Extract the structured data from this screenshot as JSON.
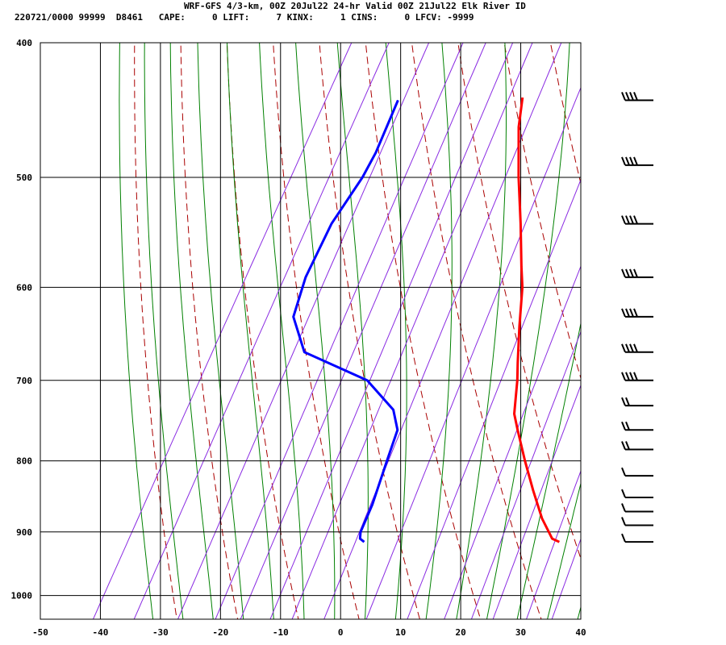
{
  "header": {
    "title": "WRF-GFS 4/3-km, 00Z 20Jul22 24-hr Valid 00Z 21Jul22 Elk River ID",
    "indices": "220721/0000 99999  D8461   CAPE:     0 LIFT:     7 KINX:     1 CINS:     0 LFCV: -9999"
  },
  "colors": {
    "temperature": "#ff0000",
    "dewpoint": "#0000ff",
    "dry_adiabat": "#aa0000",
    "moist_adiabat": "#008000",
    "isotherm_mixing": "#8a2be2",
    "grid": "#000000"
  },
  "chart_data": {
    "type": "line",
    "diagram": "skew-T log-P",
    "xlabel": "",
    "ylabel": "",
    "xlim": [
      -50,
      40
    ],
    "ylim": [
      1040,
      400
    ],
    "y_scale": "log",
    "x_ticks": [
      "-50",
      "-40",
      "-30",
      "-20",
      "-10",
      "0",
      "10",
      "20",
      "30",
      "40"
    ],
    "y_ticks": [
      "400",
      "500",
      "600",
      "700",
      "800",
      "900",
      "1000"
    ],
    "grid": true,
    "series": [
      {
        "key": "temperature",
        "points": [
          [
            438,
            -16.5
          ],
          [
            460,
            -14.5
          ],
          [
            500,
            -10
          ],
          [
            540,
            -5.5
          ],
          [
            580,
            -1.5
          ],
          [
            600,
            0.5
          ],
          [
            640,
            3.5
          ],
          [
            680,
            6.5
          ],
          [
            700,
            8
          ],
          [
            740,
            10.5
          ],
          [
            760,
            12.5
          ],
          [
            800,
            16.5
          ],
          [
            840,
            20.5
          ],
          [
            880,
            24.5
          ],
          [
            910,
            28
          ],
          [
            915,
            29.5
          ]
        ]
      },
      {
        "key": "dewpoint",
        "points": [
          [
            440,
            -37
          ],
          [
            480,
            -36
          ],
          [
            500,
            -36
          ],
          [
            540,
            -37
          ],
          [
            590,
            -36.5
          ],
          [
            630,
            -35
          ],
          [
            668,
            -30
          ],
          [
            700,
            -17
          ],
          [
            735,
            -10
          ],
          [
            760,
            -7.5
          ],
          [
            800,
            -6.5
          ],
          [
            860,
            -5
          ],
          [
            900,
            -4.5
          ],
          [
            910,
            -4
          ],
          [
            915,
            -3
          ]
        ]
      }
    ],
    "wind_barb_pressures": [
      440,
      490,
      540,
      590,
      630,
      668,
      700,
      730,
      760,
      785,
      820,
      850,
      870,
      890,
      915
    ]
  }
}
